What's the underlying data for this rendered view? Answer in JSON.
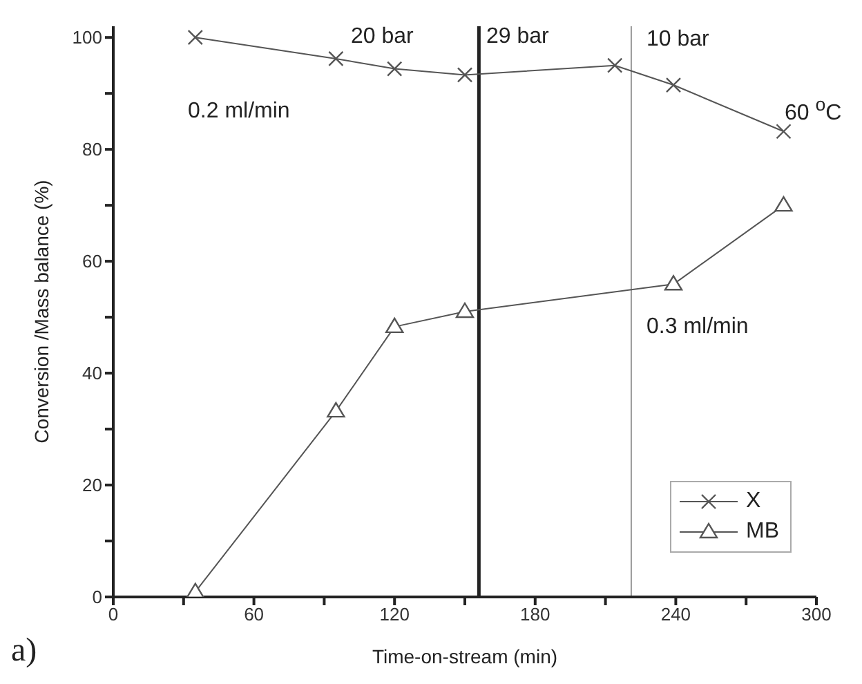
{
  "chart_data": {
    "type": "line",
    "xlabel": "Time-on-stream (min)",
    "ylabel": "Conversion /Mass balance (%)",
    "xlim": [
      0,
      300
    ],
    "ylim": [
      0,
      102
    ],
    "xticks": [
      0,
      {
        "value": 30,
        "label": null
      },
      60,
      {
        "value": 90,
        "label": null
      },
      120,
      {
        "value": 150,
        "label": null
      },
      180,
      {
        "value": 210,
        "label": null
      },
      240,
      {
        "value": 270,
        "label": null
      },
      300
    ],
    "yticks": [
      0,
      {
        "value": 10,
        "label": null
      },
      20,
      {
        "value": 30,
        "label": null
      },
      40,
      {
        "value": 50,
        "label": null
      },
      60,
      {
        "value": 70,
        "label": null
      },
      80,
      {
        "value": 90,
        "label": null
      },
      100
    ],
    "series": [
      {
        "name": "X",
        "color": "#555555",
        "marker": "cross",
        "x": [
          35,
          95,
          120,
          150,
          214,
          239,
          286
        ],
        "values": [
          100,
          96.2,
          94.4,
          93.3,
          95,
          91.5,
          83.2
        ]
      },
      {
        "name": "MB",
        "color": "#555555",
        "marker": "triangle",
        "x": [
          35,
          95,
          120,
          150,
          239,
          286
        ],
        "values": [
          0.9,
          33.2,
          48.3,
          51,
          55.9,
          70
        ]
      }
    ],
    "ref_lines": [
      {
        "axis": "x",
        "value": 156,
        "color": "#222222"
      },
      {
        "axis": "x",
        "value": 221,
        "color": "#999999"
      }
    ],
    "annotations": [
      "20 bar",
      "29 bar",
      "10 bar",
      "60 $^{o}$C",
      "0.2 ml/min",
      "0.3 ml/min",
      "a)"
    ],
    "legend": "bottom right"
  }
}
